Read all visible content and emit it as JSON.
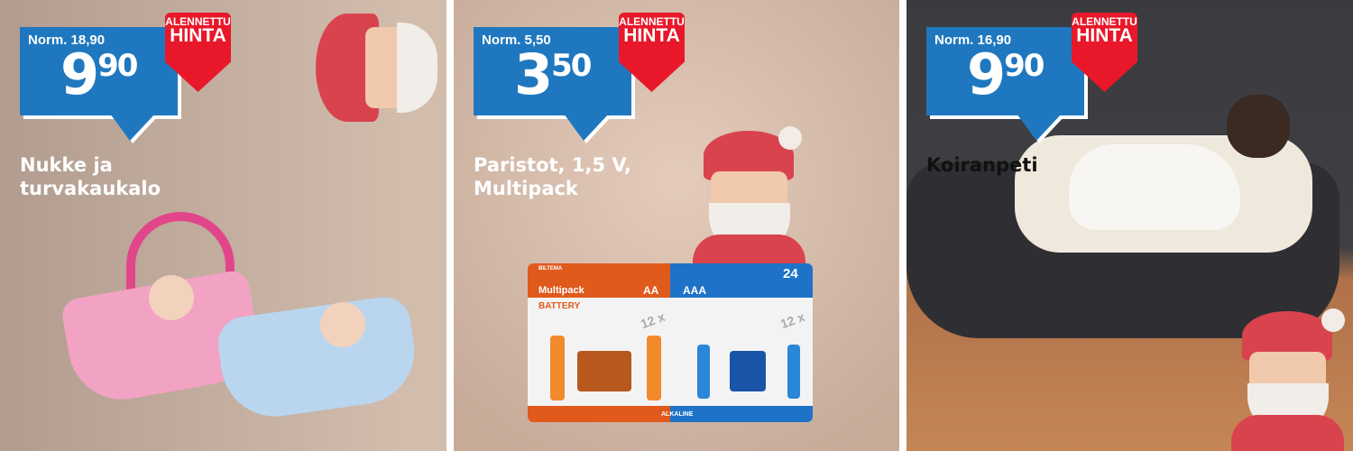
{
  "offers": [
    {
      "normal_price": "Norm. 18,90",
      "price_main": "9",
      "price_cents": "90",
      "badge_line1": "ALENNETTU",
      "badge_line2": "HINTA",
      "title_line1": "Nukke ja",
      "title_line2": "turvakaukalo"
    },
    {
      "normal_price": "Norm. 5,50",
      "price_main": "3",
      "price_cents": "50",
      "badge_line1": "ALENNETTU",
      "badge_line2": "HINTA",
      "title_line1": "Paristot, 1,5 V,",
      "title_line2": "Multipack"
    },
    {
      "normal_price": "Norm. 16,90",
      "price_main": "9",
      "price_cents": "90",
      "badge_line1": "ALENNETTU",
      "badge_line2": "HINTA",
      "title_line1": "Koiranpeti",
      "title_line2": ""
    }
  ],
  "battery_pack": {
    "brand": "BILTEMA",
    "multipack": "Multipack",
    "aa": "AA",
    "aaa": "AAA",
    "battery": "BATTERY",
    "count": "24",
    "qty_left": "12 x",
    "qty_right": "12 x",
    "alkaline": "ALKALINE"
  },
  "colors": {
    "price_blue": "#1f78bf",
    "badge_red": "#e8182a"
  }
}
